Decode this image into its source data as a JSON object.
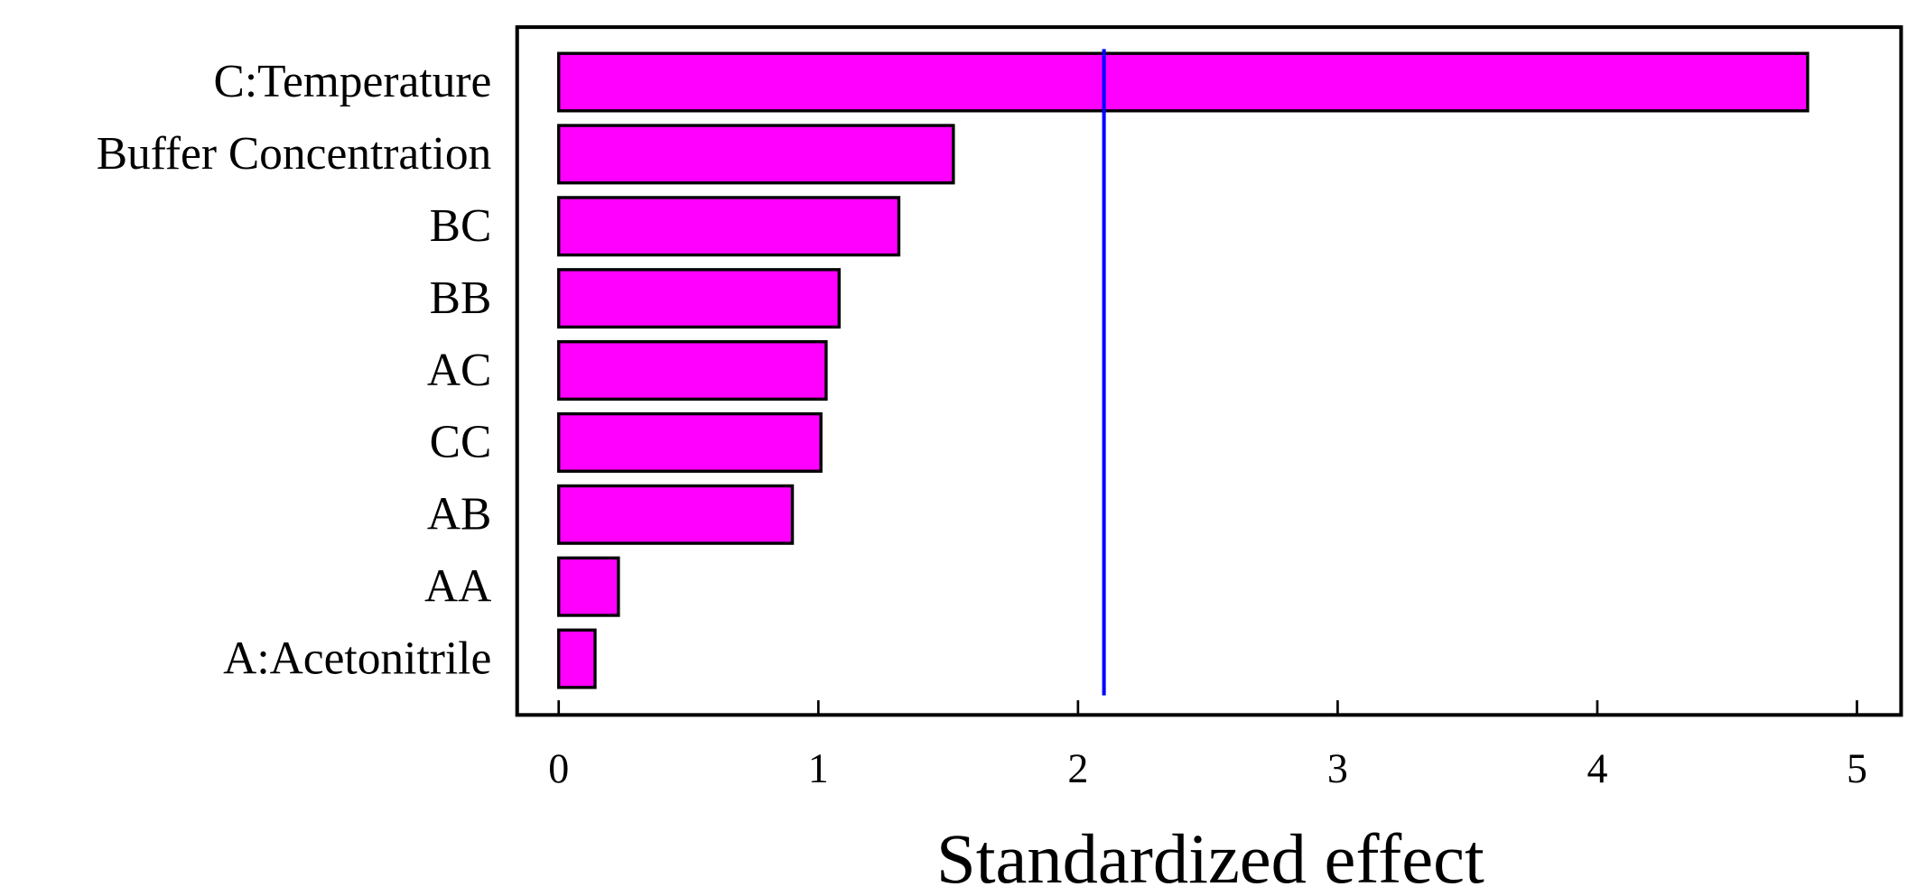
{
  "chart_data": {
    "type": "bar",
    "orientation": "horizontal",
    "xlabel": "Standardized effect",
    "categories": [
      "C:Temperature",
      "Buffer Concentration",
      "BC",
      "BB",
      "AC",
      "CC",
      "AB",
      "AA",
      "A:Acetonitrile"
    ],
    "values": [
      4.81,
      1.52,
      1.31,
      1.08,
      1.03,
      1.01,
      0.9,
      0.23,
      0.14
    ],
    "color": "#ff00ff",
    "reference_line": {
      "value": 2.1,
      "color": "#0000ff"
    },
    "xlim": [
      -0.16,
      5.17
    ],
    "xticks": [
      0,
      1,
      2,
      3,
      4,
      5
    ]
  }
}
